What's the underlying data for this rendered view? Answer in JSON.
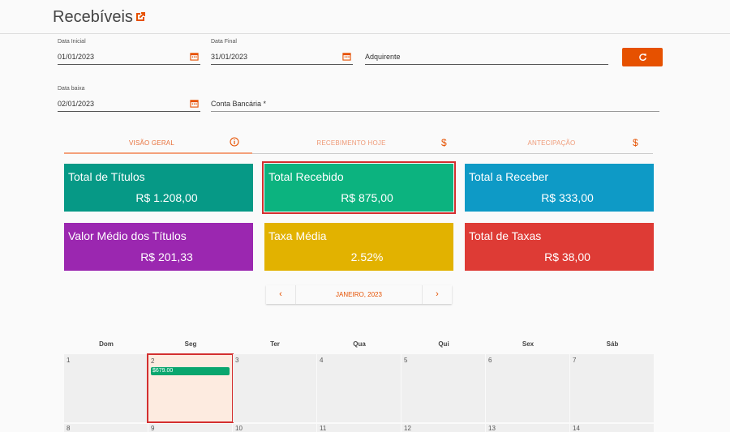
{
  "header": {
    "title": "Recebíveis",
    "icon": "external-link-icon"
  },
  "filters": {
    "data_inicial": {
      "label": "Data Inicial",
      "value": "01/01/2023"
    },
    "data_final": {
      "label": "Data Final",
      "value": "31/01/2023"
    },
    "adquirente": {
      "placeholder": "Adquirente"
    },
    "data_baixa": {
      "label": "Data baixa",
      "value": "02/01/2023"
    },
    "conta_bancaria": {
      "placeholder": "Conta Bancária *"
    },
    "refresh_icon": "refresh-icon"
  },
  "tabs": [
    {
      "label": "VISÃO GERAL",
      "icon": "info-icon",
      "active": true
    },
    {
      "label": "RECEBIMENTO HOJE",
      "icon": "dollar-icon",
      "active": false
    },
    {
      "label": "ANTECIPAÇÃO",
      "icon": "dollar-icon",
      "active": false
    }
  ],
  "cards": [
    {
      "title": "Total de Títulos",
      "value": "R$ 1.208,00",
      "color": "#069986"
    },
    {
      "title": "Total Recebido",
      "value": "R$ 875,00",
      "color": "#0cb37f",
      "highlighted": true
    },
    {
      "title": "Total a Receber",
      "value": "R$ 333,00",
      "color": "#0e9ac6"
    },
    {
      "title": "Valor Médio dos Títulos",
      "value": "R$ 201,33",
      "color": "#9b27b0"
    },
    {
      "title": "Taxa Média",
      "value": "2.52%",
      "color": "#e2b200"
    },
    {
      "title": "Total de Taxas",
      "value": "R$ 38,00",
      "color": "#de3b35"
    }
  ],
  "calendar": {
    "month_label": "JANEIRO, 2023",
    "prev_icon": "chevron-left-icon",
    "next_icon": "chevron-right-icon",
    "weekdays": [
      "Dom",
      "Seg",
      "Ter",
      "Qua",
      "Qui",
      "Sex",
      "Sáb"
    ],
    "week1": [
      {
        "num": "1"
      },
      {
        "num": "2",
        "event": "$679.00",
        "selected": true
      },
      {
        "num": "3"
      },
      {
        "num": "4"
      },
      {
        "num": "5"
      },
      {
        "num": "6"
      },
      {
        "num": "7"
      }
    ],
    "week2": [
      "8",
      "9",
      "10",
      "11",
      "12",
      "13",
      "14"
    ]
  }
}
